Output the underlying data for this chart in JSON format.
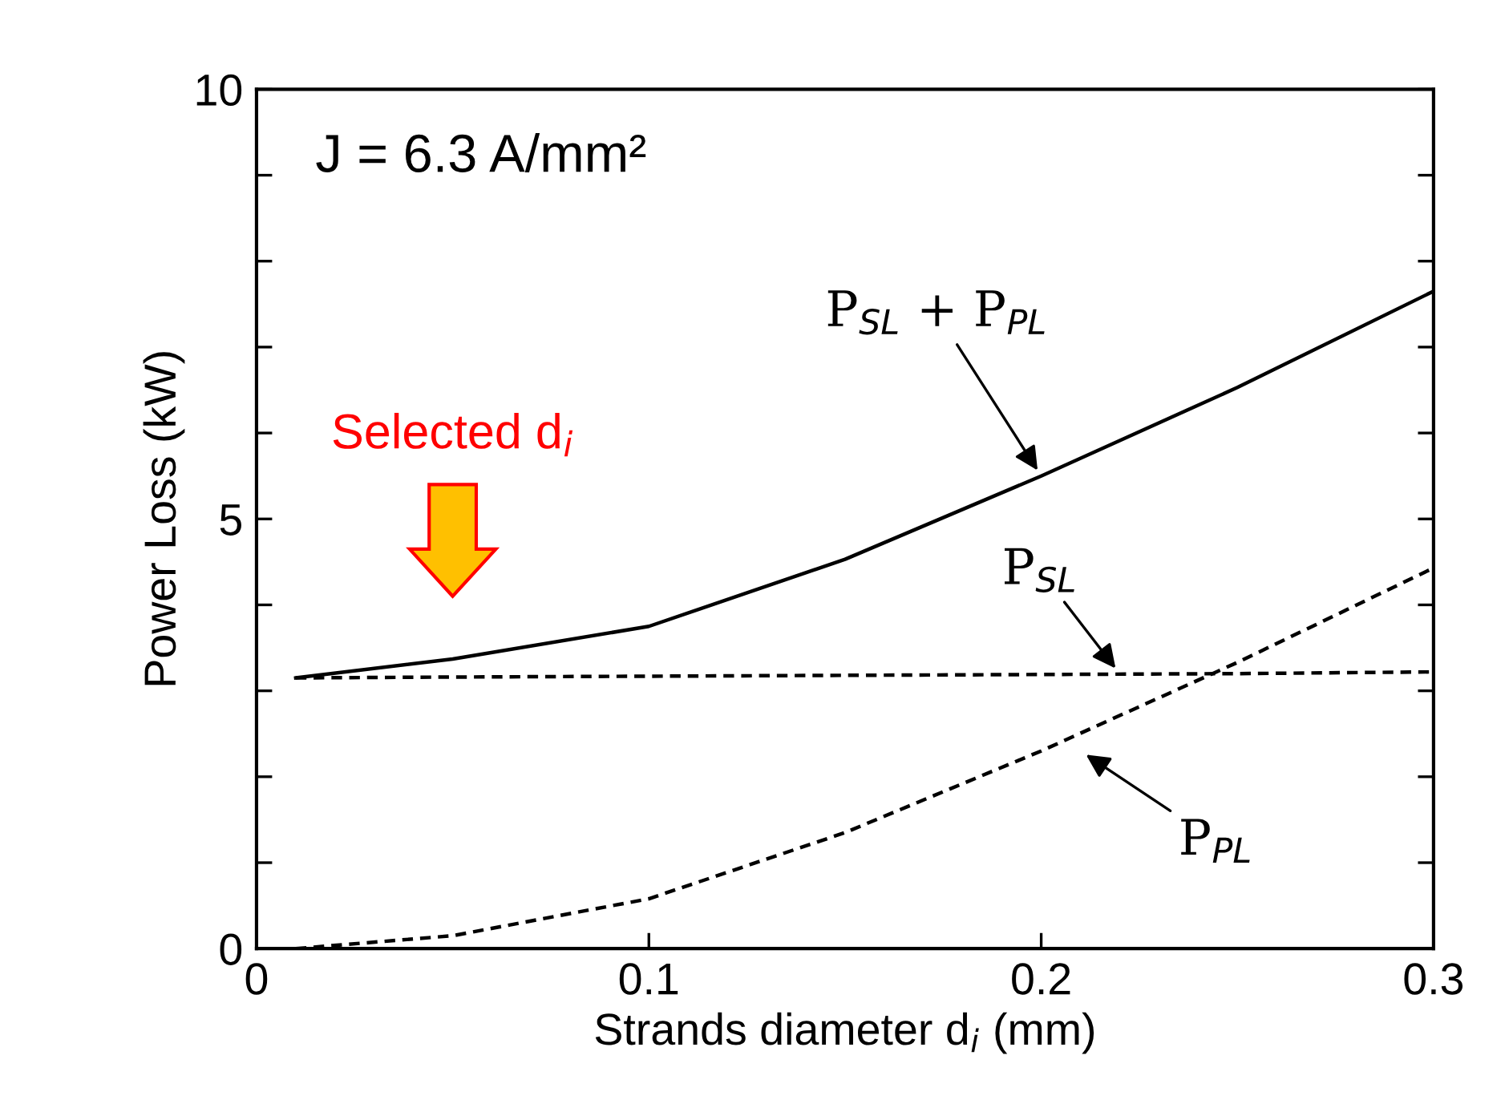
{
  "chart_data": {
    "type": "line",
    "xlabel": "Strands diameter d$_{i}$ (mm)",
    "ylabel": "Power Loss (kW)",
    "x": [
      0.01,
      0.05,
      0.1,
      0.15,
      0.2,
      0.25,
      0.3
    ],
    "series": [
      {
        "name": "P$_{SL}$ + P$_{PL}$",
        "color": "#000000",
        "line_style": "solid",
        "values": [
          3.15,
          3.37,
          3.75,
          4.53,
          5.5,
          6.53,
          7.65
        ]
      },
      {
        "name": "P$_{SL}$",
        "color": "#000000",
        "line_style": "dashed",
        "values": [
          3.15,
          3.16,
          3.17,
          3.18,
          3.19,
          3.2,
          3.22
        ]
      },
      {
        "name": "P$_{PL}$",
        "color": "#000000",
        "line_style": "dashed",
        "values": [
          0.0,
          0.15,
          0.58,
          1.35,
          2.3,
          3.33,
          4.43
        ]
      }
    ],
    "xlim": [
      0,
      0.3
    ],
    "ylim": [
      0,
      10
    ],
    "xticks": [
      0,
      0.1,
      0.2,
      0.3
    ],
    "yticks": [
      0,
      {
        "value": 1,
        "label": null
      },
      {
        "value": 2,
        "label": null
      },
      {
        "value": 3,
        "label": null
      },
      {
        "value": 4,
        "label": null
      },
      5,
      {
        "value": 6,
        "label": null
      },
      {
        "value": 7,
        "label": null
      },
      {
        "value": 8,
        "label": null
      },
      {
        "value": 9,
        "label": null
      },
      10
    ],
    "annotations": [
      "J = 6.3 A/mm²",
      "Selected d$_{i}$"
    ],
    "grid": false,
    "legend": false
  }
}
